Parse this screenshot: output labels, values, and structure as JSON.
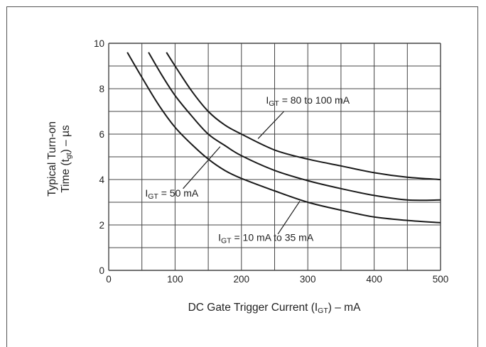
{
  "chart_data": {
    "type": "line",
    "xlabel": {
      "prefix": "DC Gate Trigger Current (I",
      "sub": "GT",
      "suffix": ") – mA"
    },
    "ylabel": {
      "line1": "Typical Turn-on",
      "line2_prefix": "Time (t",
      "line2_sub": "gt",
      "line2_suffix": ") – µs"
    },
    "xlim": [
      0,
      500
    ],
    "ylim": [
      0,
      10
    ],
    "x_ticks": [
      "0",
      "100",
      "200",
      "300",
      "400",
      "500"
    ],
    "y_ticks": [
      "0",
      "2",
      "4",
      "6",
      "8",
      "10"
    ],
    "grid": true,
    "series": [
      {
        "name": {
          "prefix": "I",
          "sub": "GT",
          "suffix": " = 10 mA to 35 mA"
        },
        "x": [
          28,
          50,
          75,
          100,
          125,
          150,
          175,
          200,
          250,
          300,
          350,
          400,
          450,
          500
        ],
        "y": [
          9.6,
          8.5,
          7.3,
          6.3,
          5.55,
          4.9,
          4.4,
          4.05,
          3.5,
          3.0,
          2.65,
          2.35,
          2.2,
          2.1
        ]
      },
      {
        "name": {
          "prefix": "I",
          "sub": "GT",
          "suffix": " = 50 mA"
        },
        "x": [
          60,
          80,
          100,
          125,
          150,
          175,
          200,
          250,
          300,
          350,
          400,
          450,
          500
        ],
        "y": [
          9.6,
          8.6,
          7.7,
          6.8,
          6.0,
          5.5,
          5.05,
          4.4,
          3.95,
          3.6,
          3.3,
          3.1,
          3.1
        ]
      },
      {
        "name": {
          "prefix": "I",
          "sub": "GT",
          "suffix": " = 80 to 100 mA"
        },
        "x": [
          87,
          100,
          125,
          150,
          175,
          200,
          250,
          300,
          350,
          400,
          450,
          500
        ],
        "y": [
          9.6,
          9.0,
          7.9,
          7.0,
          6.4,
          6.0,
          5.3,
          4.9,
          4.6,
          4.3,
          4.1,
          4.0
        ]
      }
    ],
    "annotations": [
      {
        "series": 2,
        "text_at": [
          300,
          7.35
        ],
        "anchor": "middle",
        "line_from": [
          264,
          7.0
        ],
        "line_to": [
          225,
          5.8
        ]
      },
      {
        "series": 1,
        "text_at": [
          55,
          3.25
        ],
        "anchor": "start",
        "line_from": [
          112,
          3.6
        ],
        "line_to": [
          168,
          5.45
        ]
      },
      {
        "series": 0,
        "text_at": [
          165,
          1.3
        ],
        "anchor": "start",
        "line_from": [
          255,
          1.6
        ],
        "line_to": [
          288,
          3.05
        ]
      }
    ]
  }
}
